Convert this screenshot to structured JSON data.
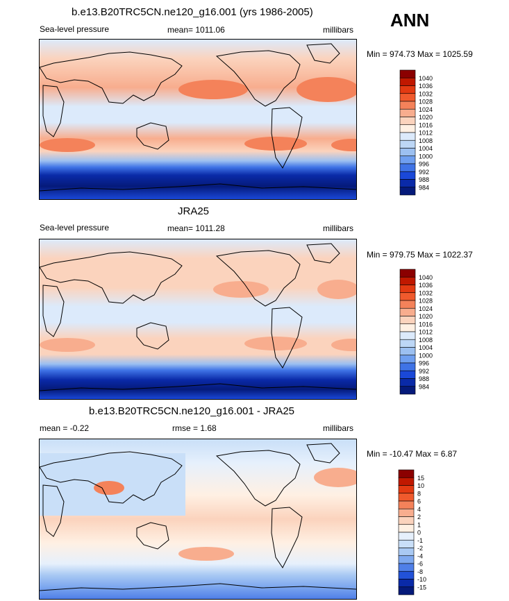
{
  "page": {
    "season": "ANN"
  },
  "chart_data": [
    {
      "type": "heatmap",
      "title": "b.e13.B20TRC5CN.ne120_g16.001 (yrs 1986-2005)",
      "left_label": "Sea-level pressure",
      "center_label": "mean= 1011.06",
      "right_label": "millibars",
      "minmax": "Min = 974.73 Max = 1025.59",
      "colorbar": {
        "levels": [
          "1040",
          "1036",
          "1032",
          "1028",
          "1024",
          "1020",
          "1016",
          "1012",
          "1008",
          "1004",
          "1000",
          "996",
          "992",
          "988",
          "984"
        ],
        "colors": [
          "#8b0000",
          "#c01800",
          "#e33a12",
          "#f05a2d",
          "#f4825a",
          "#f8ad8e",
          "#fbd3bd",
          "#fff0e3",
          "#dceafb",
          "#bdd7f6",
          "#9cc0f1",
          "#6f9ff0",
          "#3f73e6",
          "#1a48d8",
          "#0a2aa8",
          "#051a7a"
        ]
      }
    },
    {
      "type": "heatmap",
      "title": "JRA25",
      "left_label": "Sea-level pressure",
      "center_label": "mean= 1011.28",
      "right_label": "millibars",
      "minmax": "Min = 979.75 Max = 1022.37",
      "colorbar": {
        "levels": [
          "1040",
          "1036",
          "1032",
          "1028",
          "1024",
          "1020",
          "1016",
          "1012",
          "1008",
          "1004",
          "1000",
          "996",
          "992",
          "988",
          "984"
        ],
        "colors": [
          "#8b0000",
          "#c01800",
          "#e33a12",
          "#f05a2d",
          "#f4825a",
          "#f8ad8e",
          "#fbd3bd",
          "#fff0e3",
          "#dceafb",
          "#bdd7f6",
          "#9cc0f1",
          "#6f9ff0",
          "#3f73e6",
          "#1a48d8",
          "#0a2aa8",
          "#051a7a"
        ]
      }
    },
    {
      "type": "heatmap",
      "title": "b.e13.B20TRC5CN.ne120_g16.001 - JRA25",
      "left_label": "mean =  -0.22",
      "center_label": "rmse =   1.68",
      "right_label": "millibars",
      "minmax": "Min = -10.47 Max =   6.87",
      "colorbar": {
        "levels": [
          "15",
          "10",
          "8",
          "6",
          "4",
          "2",
          "1",
          "0",
          "-1",
          "-2",
          "-4",
          "-6",
          "-8",
          "-10",
          "-15"
        ],
        "colors": [
          "#8b0000",
          "#c01800",
          "#e33a12",
          "#f05a2d",
          "#f4825a",
          "#f8ad8e",
          "#fbd3bd",
          "#fff0e3",
          "#e6f0fc",
          "#c9dff8",
          "#a9c9f3",
          "#7fa9ef",
          "#4f7fe8",
          "#2252d8",
          "#0a2aa8",
          "#051a7a"
        ]
      }
    }
  ]
}
